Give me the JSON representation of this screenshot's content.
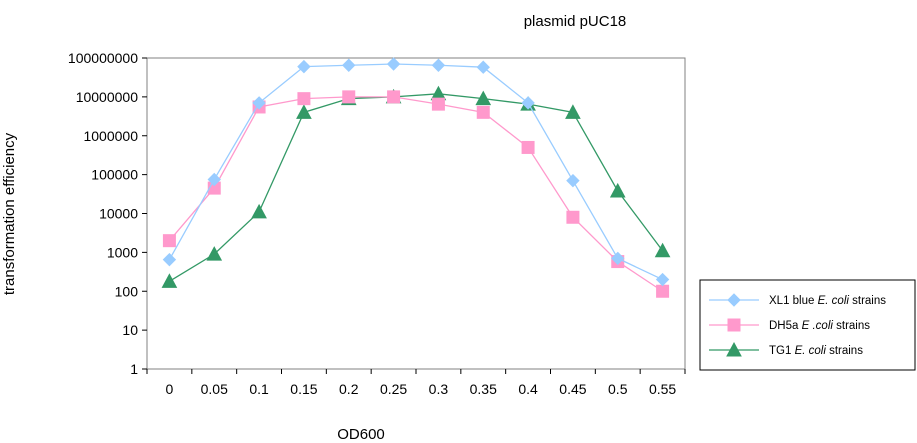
{
  "chart_data": {
    "type": "line",
    "title": "plasmid pUC18",
    "xlabel": "OD600",
    "ylabel": "transformation efficiency",
    "y_scale": "log",
    "ylim": [
      1,
      100000000
    ],
    "y_ticks": [
      "1",
      "10",
      "100",
      "1000",
      "10000",
      "100000",
      "1000000",
      "10000000",
      "100000000"
    ],
    "categories": [
      "0",
      "0.05",
      "0.1",
      "0.15",
      "0.2",
      "0.25",
      "0.3",
      "0.35",
      "0.4",
      "0.45",
      "0.5",
      "0.55"
    ],
    "grid": false,
    "legend_position": "right",
    "series": [
      {
        "name": "XL1 blue E. coli strains",
        "legend_parts": [
          {
            "t": "XL1 blue ",
            "i": false
          },
          {
            "t": "E. coli",
            "i": true
          },
          {
            "t": " strains",
            "i": false
          }
        ],
        "color": "#99ccff",
        "marker": "diamond",
        "values": [
          650,
          75000,
          7000000,
          60000000,
          65000000,
          70000000,
          65000000,
          58000000,
          7000000,
          70000,
          700,
          200
        ]
      },
      {
        "name": "DH5a E .coli strains",
        "legend_parts": [
          {
            "t": "DH5a ",
            "i": false
          },
          {
            "t": "E .coli",
            "i": true
          },
          {
            "t": " strains",
            "i": false
          }
        ],
        "color": "#ff99cc",
        "marker": "square",
        "values": [
          2000,
          45000,
          5500000,
          9000000,
          10000000,
          10000000,
          6500000,
          4000000,
          500000,
          8000,
          580,
          100
        ]
      },
      {
        "name": "TG1 E. coli strains",
        "legend_parts": [
          {
            "t": "TG1 ",
            "i": false
          },
          {
            "t": "E. coli",
            "i": true
          },
          {
            "t": " strains",
            "i": false
          }
        ],
        "color": "#339966",
        "marker": "triangle",
        "values": [
          180,
          900,
          11000,
          4000000,
          9000000,
          10000000,
          12000000,
          9000000,
          6500000,
          4000000,
          38000,
          1100
        ]
      }
    ]
  }
}
